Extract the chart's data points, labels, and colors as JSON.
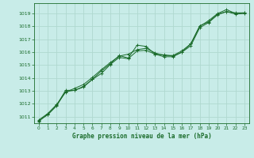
{
  "title": "Graphe pression niveau de la mer (hPa)",
  "background_color": "#c8ece8",
  "grid_color": "#b0d8d0",
  "line_color": "#1a6b2a",
  "xlim": [
    -0.5,
    23.5
  ],
  "ylim": [
    1010.5,
    1019.8
  ],
  "yticks": [
    1011,
    1012,
    1013,
    1014,
    1015,
    1016,
    1017,
    1018,
    1019
  ],
  "xticks": [
    0,
    1,
    2,
    3,
    4,
    5,
    6,
    7,
    8,
    9,
    10,
    11,
    12,
    13,
    14,
    15,
    16,
    17,
    18,
    19,
    20,
    21,
    22,
    23
  ],
  "series1": {
    "x": [
      0,
      1,
      2,
      3,
      4,
      5,
      6,
      7,
      8,
      9,
      10,
      11,
      12,
      13,
      14,
      15,
      16,
      17,
      18,
      19,
      20,
      21,
      22,
      23
    ],
    "y": [
      1010.7,
      1011.15,
      1011.85,
      1012.95,
      1013.05,
      1013.35,
      1013.9,
      1014.55,
      1015.1,
      1015.75,
      1015.55,
      1016.55,
      1016.45,
      1015.85,
      1015.8,
      1015.7,
      1016.0,
      1016.65,
      1018.0,
      1018.45,
      1019.0,
      1019.3,
      1019.0,
      1019.05
    ]
  },
  "series2": {
    "x": [
      0,
      1,
      2,
      3,
      4,
      5,
      6,
      7,
      8,
      9,
      10,
      11,
      12,
      13,
      14,
      15,
      16,
      17,
      18,
      19,
      20,
      21,
      22,
      23
    ],
    "y": [
      1010.65,
      1011.2,
      1011.9,
      1013.05,
      1013.05,
      1013.3,
      1013.9,
      1014.35,
      1015.05,
      1015.6,
      1015.5,
      1016.1,
      1016.15,
      1015.85,
      1015.65,
      1015.65,
      1016.0,
      1016.5,
      1017.9,
      1018.3,
      1018.9,
      1019.15,
      1018.95,
      1019.0
    ]
  },
  "series3": {
    "x": [
      0,
      1,
      2,
      3,
      4,
      5,
      6,
      7,
      8,
      9,
      10,
      11,
      12,
      13,
      14,
      15,
      16,
      17,
      18,
      19,
      20,
      21,
      22,
      23
    ],
    "y": [
      1010.75,
      1011.25,
      1011.95,
      1012.9,
      1013.2,
      1013.5,
      1014.05,
      1014.65,
      1015.2,
      1015.7,
      1015.85,
      1016.2,
      1016.3,
      1015.95,
      1015.75,
      1015.75,
      1016.1,
      1016.65,
      1018.05,
      1018.35,
      1018.95,
      1019.15,
      1019.05,
      1019.05
    ]
  }
}
